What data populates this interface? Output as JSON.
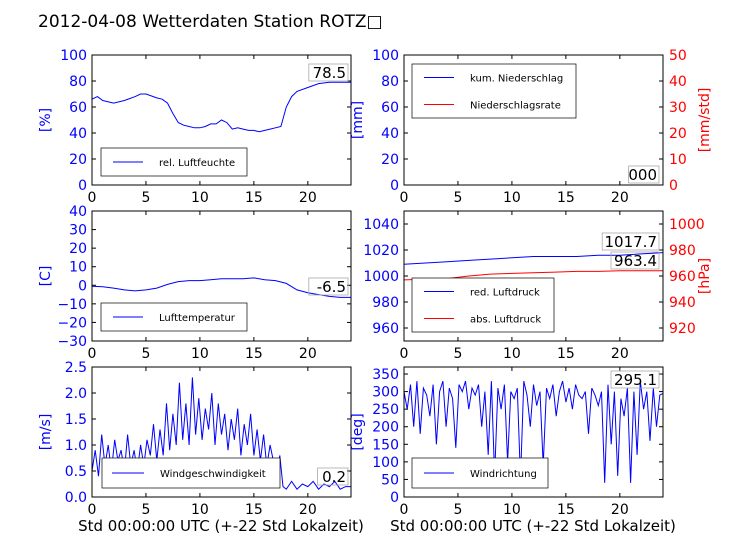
{
  "figure": {
    "title": "2012-04-08 Wetterdaten Station ROTZ□",
    "xlabel": "Std 00:00:00 UTC (+-22 Std Lokalzeit)"
  },
  "chart_data": [
    {
      "type": "line",
      "ylabel": "[%]",
      "xlim": [
        0,
        24
      ],
      "ylim": [
        0,
        100
      ],
      "xticks": [
        "0",
        "5",
        "10",
        "15",
        "20"
      ],
      "yticks": [
        "0",
        "20",
        "40",
        "60",
        "80",
        "100"
      ],
      "legend": "bottom-left",
      "last_value_label": "78.5",
      "series": [
        {
          "name": "rel. Luftfeuchte",
          "color": "#0000ff",
          "x": [
            0,
            0.5,
            1,
            2,
            3,
            4,
            4.5,
            5,
            6,
            6.5,
            7,
            7.5,
            8,
            8.5,
            9,
            9.5,
            10,
            10.5,
            11,
            11.5,
            12,
            12.5,
            13,
            13.5,
            14,
            14.5,
            15,
            15.5,
            16,
            16.5,
            17,
            17.5,
            18,
            18.5,
            19,
            20,
            21,
            22,
            23,
            24
          ],
          "y": [
            66,
            68,
            65,
            63,
            65,
            68,
            70,
            70,
            67,
            66,
            63,
            55,
            48,
            46,
            45,
            44,
            44,
            45,
            47,
            47,
            50,
            48,
            43,
            44,
            43,
            42,
            42,
            41,
            42,
            43,
            44,
            45,
            60,
            68,
            72,
            75,
            78,
            79,
            79,
            79
          ]
        }
      ]
    },
    {
      "type": "line",
      "ylabel": "[mm]",
      "ylabel2": "[mm/std]",
      "xlim": [
        0,
        24
      ],
      "ylim": [
        0,
        100
      ],
      "y2lim": [
        0,
        50
      ],
      "xticks": [
        "0",
        "5",
        "10",
        "15",
        "20"
      ],
      "yticks": [
        "0",
        "20",
        "40",
        "60",
        "80",
        "100"
      ],
      "y2ticks": [
        "0",
        "10",
        "20",
        "30",
        "40",
        "50"
      ],
      "legend": "top-left",
      "last_value_label": "000",
      "series": [
        {
          "name": "kum. Niederschlag",
          "color": "#0000ff",
          "x": [
            0,
            24
          ],
          "y": [
            0,
            0
          ]
        },
        {
          "name": "Niederschlagsrate",
          "color": "#ff0000",
          "axis": "y2",
          "x": [
            0,
            24
          ],
          "y": [
            0,
            0
          ]
        }
      ]
    },
    {
      "type": "line",
      "ylabel": "[C]",
      "xlim": [
        0,
        24
      ],
      "ylim": [
        -30,
        40
      ],
      "xticks": [
        "0",
        "5",
        "10",
        "15",
        "20"
      ],
      "yticks": [
        "−30",
        "−20",
        "−10",
        "0",
        "10",
        "20",
        "30",
        "40"
      ],
      "legend": "bottom-left",
      "last_value_label": "-6.5",
      "series": [
        {
          "name": "Lufttemperatur",
          "color": "#0000ff",
          "x": [
            0,
            1,
            2,
            3,
            4,
            5,
            6,
            7,
            8,
            9,
            10,
            11,
            12,
            13,
            14,
            15,
            16,
            17,
            18,
            19,
            20,
            21,
            22,
            23,
            24
          ],
          "y": [
            -0.5,
            -0.8,
            -1.5,
            -2.5,
            -3,
            -2.5,
            -1.5,
            0.5,
            2,
            2.5,
            2.5,
            3,
            3.5,
            3.5,
            3.5,
            4,
            3,
            2.5,
            1,
            -2.5,
            -4,
            -5,
            -6,
            -6.5,
            -6.5
          ]
        }
      ]
    },
    {
      "type": "line",
      "ylabel2": "[hPa]",
      "xlim": [
        0,
        24
      ],
      "ylim": [
        950,
        1050
      ],
      "y2lim": [
        910,
        1010
      ],
      "xticks": [
        "0",
        "5",
        "10",
        "15",
        "20"
      ],
      "yticks": [
        "960",
        "980",
        "1000",
        "1020",
        "1040"
      ],
      "y2ticks": [
        "920",
        "940",
        "960",
        "980",
        "1000"
      ],
      "legend": "bottom-left",
      "last_value_labels": [
        "1017.7",
        "963.4"
      ],
      "series": [
        {
          "name": "red. Luftdruck",
          "color": "#0000ff",
          "x": [
            0,
            2,
            4,
            6,
            8,
            10,
            12,
            14,
            16,
            18,
            20,
            22,
            24
          ],
          "y": [
            1009,
            1010,
            1011,
            1012,
            1013,
            1014,
            1015,
            1015,
            1015,
            1016,
            1016,
            1017,
            1018
          ]
        },
        {
          "name": "abs. Luftdruck",
          "color": "#ff0000",
          "axis": "y2",
          "x": [
            0,
            2,
            4,
            6,
            8,
            10,
            12,
            14,
            16,
            18,
            20,
            22,
            24
          ],
          "y": [
            957,
            957.5,
            958,
            960,
            961.5,
            962,
            962.5,
            963,
            963.5,
            963.5,
            964,
            964,
            964
          ]
        }
      ]
    },
    {
      "type": "line",
      "ylabel": "[m/s]",
      "xlim": [
        0,
        24
      ],
      "ylim": [
        0,
        2.5
      ],
      "xticks": [
        "0",
        "5",
        "10",
        "15",
        "20"
      ],
      "yticks": [
        "0.0",
        "0.5",
        "1.0",
        "1.5",
        "2.0",
        "2.5"
      ],
      "legend": "bottom-center",
      "last_value_label": "0.2",
      "series": [
        {
          "name": "Windgeschwindigkeit",
          "color": "#0000ff",
          "x": [
            0,
            0.3,
            0.6,
            0.9,
            1.2,
            1.5,
            1.8,
            2.1,
            2.4,
            2.7,
            3,
            3.3,
            3.6,
            3.9,
            4.2,
            4.5,
            4.8,
            5.1,
            5.4,
            5.7,
            6,
            6.3,
            6.6,
            6.9,
            7.2,
            7.5,
            7.8,
            8.1,
            8.4,
            8.7,
            9,
            9.3,
            9.6,
            9.9,
            10.2,
            10.5,
            10.8,
            11.1,
            11.4,
            11.7,
            12,
            12.3,
            12.6,
            12.9,
            13.2,
            13.5,
            13.8,
            14.1,
            14.4,
            14.7,
            15,
            15.3,
            15.6,
            15.9,
            16.2,
            16.5,
            16.8,
            17.1,
            17.4,
            17.7,
            18,
            18.5,
            19,
            19.5,
            20,
            20.5,
            21,
            21.5,
            22,
            22.5,
            23,
            23.5,
            24
          ],
          "y": [
            0.5,
            0.9,
            0.4,
            1.2,
            0.6,
            1.0,
            0.5,
            1.1,
            0.7,
            0.9,
            0.5,
            1.2,
            0.6,
            0.9,
            0.5,
            1.0,
            0.6,
            1.1,
            0.8,
            1.4,
            0.7,
            1.3,
            0.8,
            1.8,
            0.9,
            1.6,
            1.0,
            2.2,
            1.1,
            1.8,
            1.0,
            2.3,
            1.2,
            1.9,
            1.1,
            1.7,
            1.3,
            2.0,
            1.0,
            1.8,
            1.2,
            1.6,
            0.9,
            1.5,
            1.1,
            1.7,
            0.8,
            1.4,
            1.0,
            1.6,
            0.8,
            1.3,
            0.7,
            1.2,
            0.6,
            1.0,
            0.7,
            0.4,
            0.8,
            0.2,
            0.15,
            0.3,
            0.15,
            0.25,
            0.2,
            0.3,
            0.15,
            0.25,
            0.2,
            0.3,
            0.15,
            0.2,
            0.2
          ]
        }
      ]
    },
    {
      "type": "line",
      "ylabel": "[deg]",
      "xlim": [
        0,
        24
      ],
      "ylim": [
        0,
        370
      ],
      "xticks": [
        "0",
        "5",
        "10",
        "15",
        "20"
      ],
      "yticks": [
        "0",
        "50",
        "100",
        "150",
        "200",
        "250",
        "300",
        "350"
      ],
      "legend": "bottom-left",
      "last_value_label": "295.1",
      "series": [
        {
          "name": "Windrichtung",
          "color": "#0000ff",
          "x": [
            0,
            0.3,
            0.6,
            0.9,
            1.2,
            1.5,
            1.8,
            2.1,
            2.4,
            2.7,
            3,
            3.3,
            3.6,
            3.9,
            4.2,
            4.5,
            4.8,
            5.1,
            5.4,
            5.7,
            6,
            6.3,
            6.6,
            6.9,
            7.2,
            7.5,
            7.8,
            8.1,
            8.4,
            8.7,
            9,
            9.3,
            9.6,
            9.9,
            10.2,
            10.5,
            10.8,
            11.1,
            11.4,
            11.7,
            12,
            12.3,
            12.6,
            12.9,
            13.2,
            13.5,
            13.8,
            14.1,
            14.4,
            14.7,
            15,
            15.3,
            15.6,
            15.9,
            16.2,
            16.5,
            16.8,
            17.1,
            17.4,
            17.7,
            18,
            18.3,
            18.6,
            18.9,
            19.2,
            19.5,
            19.8,
            20.1,
            20.4,
            20.7,
            21,
            21.3,
            21.6,
            21.9,
            22.2,
            22.5,
            22.8,
            23.1,
            23.4,
            23.7,
            24
          ],
          "y": [
            300,
            250,
            320,
            200,
            330,
            180,
            310,
            290,
            230,
            320,
            150,
            300,
            330,
            200,
            310,
            280,
            140,
            320,
            300,
            330,
            250,
            310,
            290,
            320,
            200,
            300,
            120,
            330,
            60,
            310,
            250,
            320,
            100,
            300,
            280,
            310,
            50,
            330,
            290,
            200,
            320,
            260,
            300,
            90,
            310,
            280,
            320,
            230,
            300,
            330,
            270,
            310,
            250,
            320,
            290,
            280,
            300,
            180,
            310,
            290,
            260,
            300,
            40,
            320,
            150,
            300,
            60,
            280,
            230,
            310,
            40,
            300,
            120,
            330,
            250,
            300,
            160,
            310,
            200,
            290,
            295
          ]
        }
      ]
    }
  ]
}
